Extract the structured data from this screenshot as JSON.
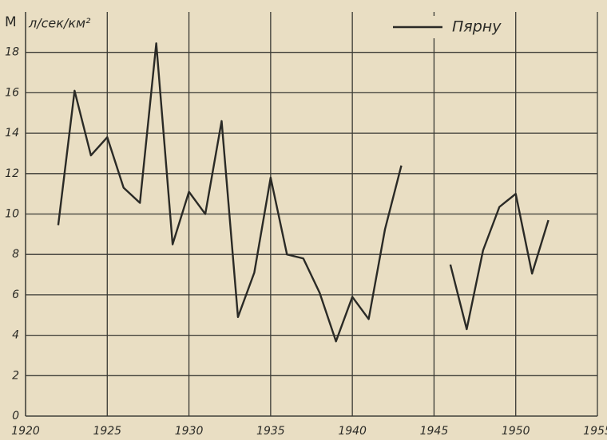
{
  "chart_data": {
    "type": "line",
    "ylabel": "M",
    "yunit": "л/сек/км²",
    "x": [
      1922,
      1923,
      1924,
      1925,
      1926,
      1927,
      1928,
      1929,
      1930,
      1931,
      1932,
      1933,
      1934,
      1935,
      1936,
      1937,
      1938,
      1939,
      1940,
      1941,
      1942,
      1943,
      1944,
      1945,
      1946,
      1947,
      1948,
      1949,
      1950,
      1951,
      1952
    ],
    "series": [
      {
        "name": "Пярну",
        "color": "#2a2a26",
        "values": [
          9.45,
          16.1,
          12.9,
          13.8,
          11.3,
          10.55,
          18.45,
          8.5,
          11.1,
          10.0,
          14.6,
          4.9,
          7.1,
          11.8,
          8.0,
          7.8,
          6.1,
          3.7,
          5.9,
          4.8,
          9.25,
          12.4,
          null,
          null,
          7.5,
          4.3,
          8.2,
          10.35,
          11.0,
          7.05,
          9.7
        ]
      }
    ],
    "xlim": [
      1920,
      1955
    ],
    "xticks": [
      1920,
      1925,
      1930,
      1935,
      1940,
      1945,
      1950,
      1955
    ],
    "ylim": [
      0,
      20
    ],
    "yticks": [
      0,
      2,
      4,
      6,
      8,
      10,
      12,
      14,
      16,
      18
    ],
    "grid": true,
    "legend": "top-right"
  }
}
